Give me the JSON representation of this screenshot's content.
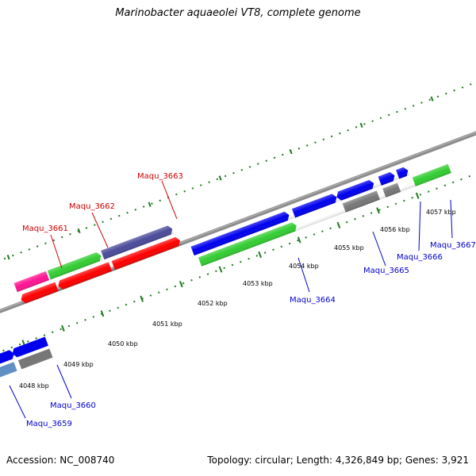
{
  "title": "Marinobacter aquaeolei VT8, complete genome",
  "footer": {
    "accession": "Accession: NC_008740",
    "topology": "Topology: circular; Length: 4,326,849 bp; Genes: 3,921"
  },
  "colors": {
    "backbone": "#8c8c8c",
    "scale_ticks": "#1f7a1f",
    "red_gene": "#ff0000",
    "green_gene": "#33cc33",
    "blue_gene": "#0000ee",
    "gray_gene": "#777777",
    "pink_gene": "#ff1493",
    "purple_gene": "#4b4b9b",
    "steel_gene": "#5f8fc5",
    "label_red": "#cc0000",
    "label_blue": "#0000cc"
  },
  "scale_labels": [
    "4048 kbp",
    "4049 kbp",
    "4050 kbp",
    "4051 kbp",
    "4052 kbp",
    "4053 kbp",
    "4054 kbp",
    "4055 kbp",
    "4056 kbp",
    "4057 kbp"
  ],
  "gene_labels": {
    "maqu_3659": "Maqu_3659",
    "maqu_3660": "Maqu_3660",
    "maqu_3661": "Maqu_3661",
    "maqu_3662": "Maqu_3662",
    "maqu_3663": "Maqu_3663",
    "maqu_3664": "Maqu_3664",
    "maqu_3665": "Maqu_3665",
    "maqu_3666": "Maqu_3666",
    "maqu_3667": "Maqu_3667"
  }
}
